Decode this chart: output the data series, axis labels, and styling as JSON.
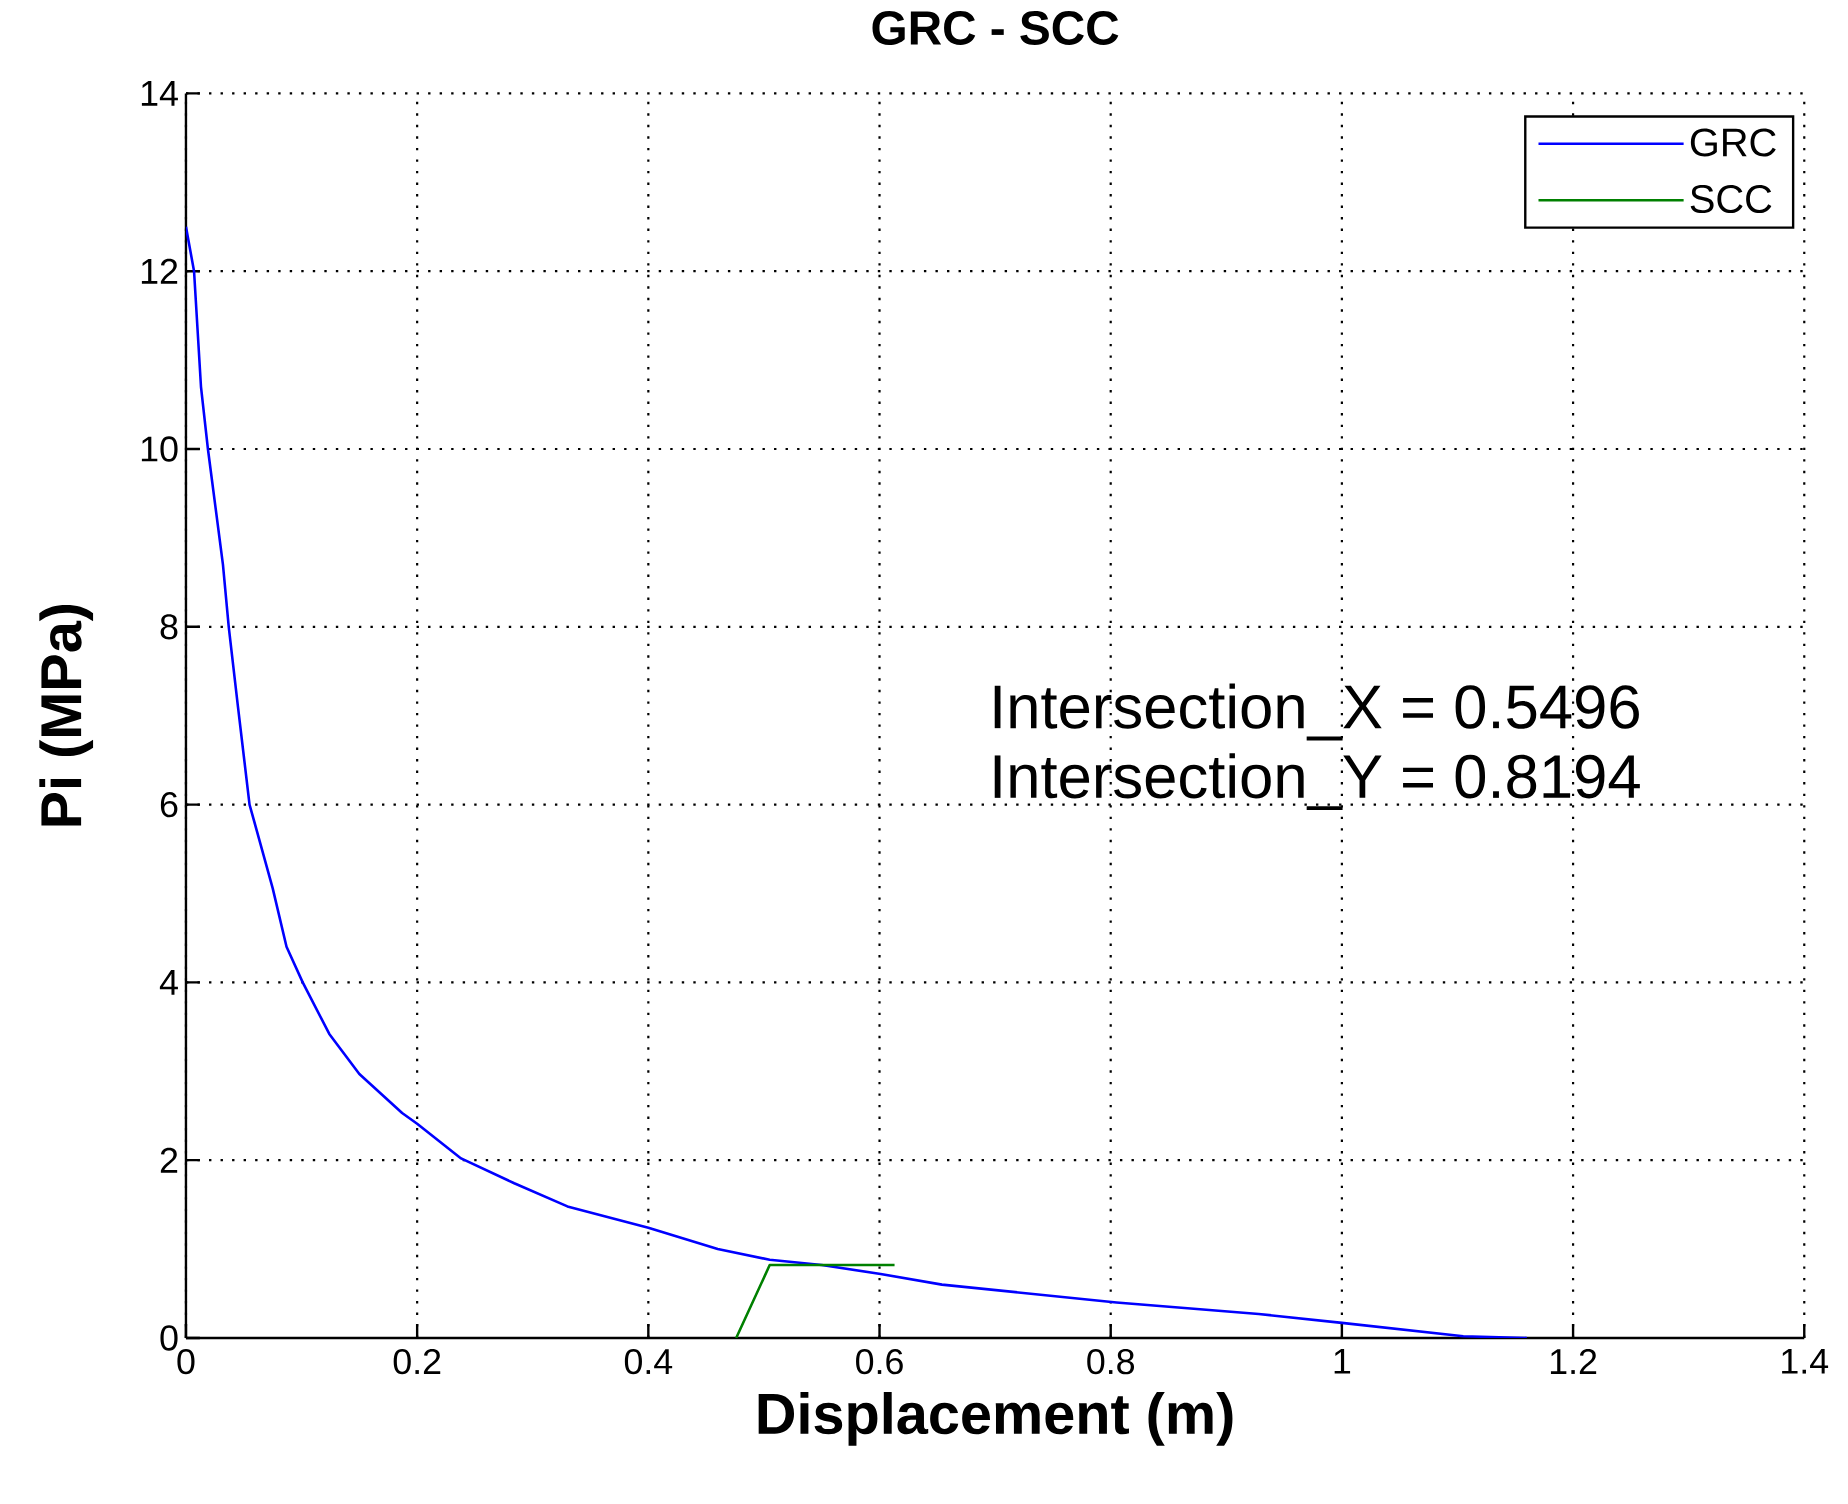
{
  "chart_data": {
    "type": "line",
    "title": "GRC - SCC",
    "xlabel": "Displacement (m)",
    "ylabel": "Pi (MPa)",
    "series": [
      {
        "name": "GRC",
        "color": "#0000ff",
        "x": [
          0,
          0.007,
          0.013,
          0.019,
          0.032,
          0.037,
          0.045,
          0.055,
          0.075,
          0.087,
          0.101,
          0.124,
          0.15,
          0.187,
          0.2,
          0.238,
          0.284,
          0.33,
          0.4,
          0.46,
          0.505,
          0.55,
          0.601,
          0.654,
          0.805,
          0.928,
          1.0,
          1.105,
          1.16
        ],
        "values": [
          12.5,
          12.0,
          10.7,
          10.0,
          8.7,
          8.0,
          7.1,
          6.0,
          5.06,
          4.4,
          4.0,
          3.42,
          2.97,
          2.53,
          2.41,
          2.02,
          1.74,
          1.48,
          1.24,
          1.0,
          0.88,
          0.82,
          0.72,
          0.6,
          0.4,
          0.27,
          0.17,
          0.02,
          0
        ]
      },
      {
        "name": "SCC",
        "color": "#008000",
        "x": [
          0.476,
          0.505,
          0.613
        ],
        "values": [
          0,
          0.82,
          0.82
        ]
      }
    ],
    "xlim": [
      0,
      1.4
    ],
    "ylim": [
      0,
      14
    ],
    "xticks": [
      0,
      0.2,
      0.4,
      0.6,
      0.8,
      1,
      1.2,
      1.4
    ],
    "yticks": [
      0,
      2,
      4,
      6,
      8,
      10,
      12,
      14
    ],
    "grid": true,
    "legend": "top right",
    "annotations": [
      "Intersection_X = 0.5496",
      "Intersection_Y = 0.8194"
    ]
  }
}
